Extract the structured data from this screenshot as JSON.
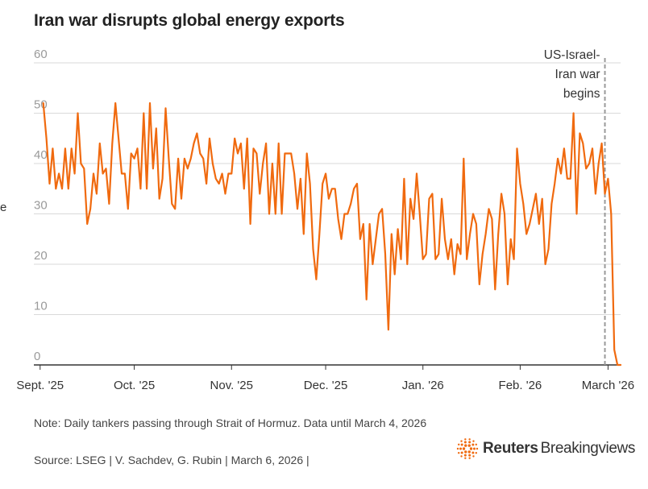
{
  "title": "Iran war disrupts global energy exports",
  "note": "Note: Daily tankers passing through Strait of Hormuz. Data until March 4, 2026",
  "source": "Source: LSEG | V. Sachdev, G. Rubin | March 6, 2026 |",
  "brand": {
    "name": "Reuters",
    "sub": "Breakingviews",
    "icon": "reuters-logo-icon"
  },
  "colors": {
    "line": "#f06a0f",
    "grid": "#d9d9d9",
    "event": "#9a9a9a",
    "logo": "#f06a0f"
  },
  "chart_data": {
    "type": "line",
    "title": "Iran war disrupts global energy exports",
    "xlabel": "",
    "ylabel": "e",
    "ylim": [
      0,
      60
    ],
    "yticks": [
      0,
      10,
      20,
      30,
      40,
      50,
      60
    ],
    "xlim": [
      -2,
      185
    ],
    "x_tick_labels": [
      {
        "label": "Sept. '25",
        "x": 0
      },
      {
        "label": "Oct. '25",
        "x": 30
      },
      {
        "label": "Nov. '25",
        "x": 61
      },
      {
        "label": "Dec. '25",
        "x": 91
      },
      {
        "label": "Jan. '26",
        "x": 122
      },
      {
        "label": "Feb. '26",
        "x": 153
      },
      {
        "label": "March '26",
        "x": 181
      }
    ],
    "x_unit": "days since Sept. 1, 2025",
    "grid": true,
    "legend": "none",
    "event": {
      "x": 180,
      "label_lines": [
        "US-Israel-",
        "Iran war",
        "begins"
      ]
    },
    "series": [
      {
        "name": "Daily tankers passing through Strait of Hormuz",
        "values": [
          [
            1,
            52
          ],
          [
            2,
            45
          ],
          [
            3,
            36
          ],
          [
            4,
            43
          ],
          [
            5,
            35
          ],
          [
            6,
            38
          ],
          [
            7,
            35
          ],
          [
            8,
            43
          ],
          [
            9,
            35
          ],
          [
            10,
            43
          ],
          [
            11,
            38
          ],
          [
            12,
            50
          ],
          [
            13,
            40
          ],
          [
            14,
            39
          ],
          [
            15,
            28
          ],
          [
            16,
            31
          ],
          [
            17,
            38
          ],
          [
            18,
            34
          ],
          [
            19,
            44
          ],
          [
            20,
            38
          ],
          [
            21,
            39
          ],
          [
            22,
            32
          ],
          [
            23,
            44
          ],
          [
            24,
            52
          ],
          [
            25,
            45
          ],
          [
            26,
            38
          ],
          [
            27,
            38
          ],
          [
            28,
            31
          ],
          [
            29,
            42
          ],
          [
            30,
            41
          ],
          [
            31,
            43
          ],
          [
            32,
            35
          ],
          [
            33,
            50
          ],
          [
            34,
            35
          ],
          [
            35,
            52
          ],
          [
            36,
            39
          ],
          [
            37,
            47
          ],
          [
            38,
            33
          ],
          [
            39,
            37
          ],
          [
            40,
            51
          ],
          [
            41,
            41
          ],
          [
            42,
            32
          ],
          [
            43,
            31
          ],
          [
            44,
            41
          ],
          [
            45,
            33
          ],
          [
            46,
            41
          ],
          [
            47,
            39
          ],
          [
            48,
            41
          ],
          [
            49,
            44
          ],
          [
            50,
            46
          ],
          [
            51,
            42
          ],
          [
            52,
            41
          ],
          [
            53,
            36
          ],
          [
            54,
            45
          ],
          [
            55,
            40
          ],
          [
            56,
            37
          ],
          [
            57,
            36
          ],
          [
            58,
            38
          ],
          [
            59,
            34
          ],
          [
            60,
            38
          ],
          [
            61,
            38
          ],
          [
            62,
            45
          ],
          [
            63,
            42
          ],
          [
            64,
            44
          ],
          [
            65,
            35
          ],
          [
            66,
            45
          ],
          [
            67,
            28
          ],
          [
            68,
            43
          ],
          [
            69,
            42
          ],
          [
            70,
            34
          ],
          [
            71,
            40
          ],
          [
            72,
            44
          ],
          [
            73,
            30
          ],
          [
            74,
            40
          ],
          [
            75,
            30
          ],
          [
            76,
            44
          ],
          [
            77,
            30
          ],
          [
            78,
            42
          ],
          [
            79,
            42
          ],
          [
            80,
            42
          ],
          [
            81,
            38
          ],
          [
            82,
            31
          ],
          [
            83,
            37
          ],
          [
            84,
            26
          ],
          [
            85,
            42
          ],
          [
            86,
            36
          ],
          [
            87,
            23
          ],
          [
            88,
            17
          ],
          [
            89,
            26
          ],
          [
            90,
            36
          ],
          [
            91,
            38
          ],
          [
            92,
            33
          ],
          [
            93,
            35
          ],
          [
            94,
            35
          ],
          [
            95,
            29
          ],
          [
            96,
            25
          ],
          [
            97,
            30
          ],
          [
            98,
            30
          ],
          [
            99,
            32
          ],
          [
            100,
            35
          ],
          [
            101,
            36
          ],
          [
            102,
            25
          ],
          [
            103,
            28
          ],
          [
            104,
            13
          ],
          [
            105,
            28
          ],
          [
            106,
            20
          ],
          [
            107,
            25
          ],
          [
            108,
            30
          ],
          [
            109,
            31
          ],
          [
            110,
            22
          ],
          [
            111,
            7
          ],
          [
            112,
            26
          ],
          [
            113,
            18
          ],
          [
            114,
            27
          ],
          [
            115,
            21
          ],
          [
            116,
            37
          ],
          [
            117,
            20
          ],
          [
            118,
            33
          ],
          [
            119,
            29
          ],
          [
            120,
            38
          ],
          [
            121,
            30
          ],
          [
            122,
            21
          ],
          [
            123,
            22
          ],
          [
            124,
            33
          ],
          [
            125,
            34
          ],
          [
            126,
            21
          ],
          [
            127,
            22
          ],
          [
            128,
            33
          ],
          [
            129,
            25
          ],
          [
            130,
            21
          ],
          [
            131,
            25
          ],
          [
            132,
            18
          ],
          [
            133,
            24
          ],
          [
            134,
            22
          ],
          [
            135,
            41
          ],
          [
            136,
            21
          ],
          [
            137,
            26
          ],
          [
            138,
            30
          ],
          [
            139,
            28
          ],
          [
            140,
            16
          ],
          [
            141,
            22
          ],
          [
            142,
            26
          ],
          [
            143,
            31
          ],
          [
            144,
            29
          ],
          [
            145,
            15
          ],
          [
            146,
            26
          ],
          [
            147,
            34
          ],
          [
            148,
            30
          ],
          [
            149,
            16
          ],
          [
            150,
            25
          ],
          [
            151,
            21
          ],
          [
            152,
            43
          ],
          [
            153,
            36
          ],
          [
            154,
            32
          ],
          [
            155,
            26
          ],
          [
            156,
            28
          ],
          [
            157,
            31
          ],
          [
            158,
            34
          ],
          [
            159,
            28
          ],
          [
            160,
            33
          ],
          [
            161,
            20
          ],
          [
            162,
            23
          ],
          [
            163,
            32
          ],
          [
            164,
            36
          ],
          [
            165,
            41
          ],
          [
            166,
            38
          ],
          [
            167,
            43
          ],
          [
            168,
            37
          ],
          [
            169,
            37
          ],
          [
            170,
            50
          ],
          [
            171,
            30
          ],
          [
            172,
            46
          ],
          [
            173,
            44
          ],
          [
            174,
            39
          ],
          [
            175,
            40
          ],
          [
            176,
            43
          ],
          [
            177,
            34
          ],
          [
            178,
            40
          ],
          [
            179,
            44
          ],
          [
            180,
            34
          ],
          [
            181,
            37
          ],
          [
            182,
            30
          ],
          [
            183,
            3
          ],
          [
            184,
            0
          ],
          [
            185,
            0
          ]
        ]
      }
    ]
  }
}
